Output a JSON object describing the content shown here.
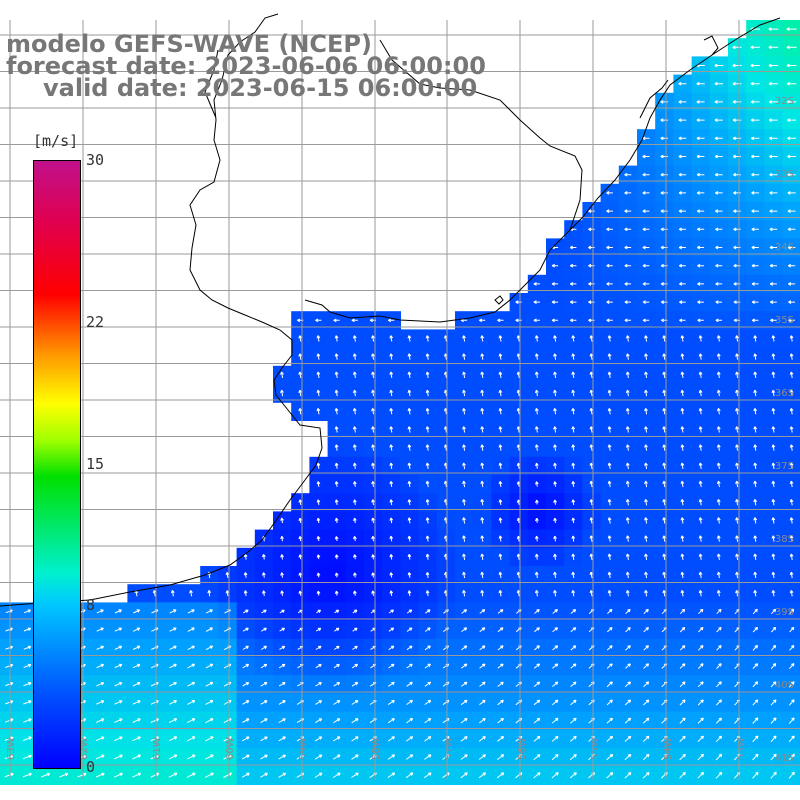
{
  "title": {
    "line1": "modelo GEFS-WAVE (NCEP)",
    "line2": "forecast date: 2023-06-06 06:00:00",
    "line3": "valid date: 2023-06-15 06:00:00"
  },
  "colorbar": {
    "unit": "[m/s]",
    "min": 0,
    "max": 30,
    "ticks": [
      {
        "label": "30",
        "value": 30
      },
      {
        "label": "22",
        "value": 22
      },
      {
        "label": "15",
        "value": 15
      },
      {
        "label": "8",
        "value": 8
      },
      {
        "label": "0",
        "value": 0
      }
    ]
  },
  "map": {
    "lat_labels": [
      "32S",
      "33S",
      "34S",
      "35S",
      "36S",
      "37S",
      "38S",
      "39S",
      "40S",
      "41S"
    ],
    "lon_labels": [
      "63W",
      "62W",
      "61W",
      "60W",
      "59W",
      "58W",
      "57W",
      "56W",
      "55W",
      "54W",
      "53W"
    ],
    "land_color": "#ffffff",
    "coast_color": "#000000",
    "grid_color": "#9a9a9a",
    "arrow_color": "#ffffff"
  }
}
